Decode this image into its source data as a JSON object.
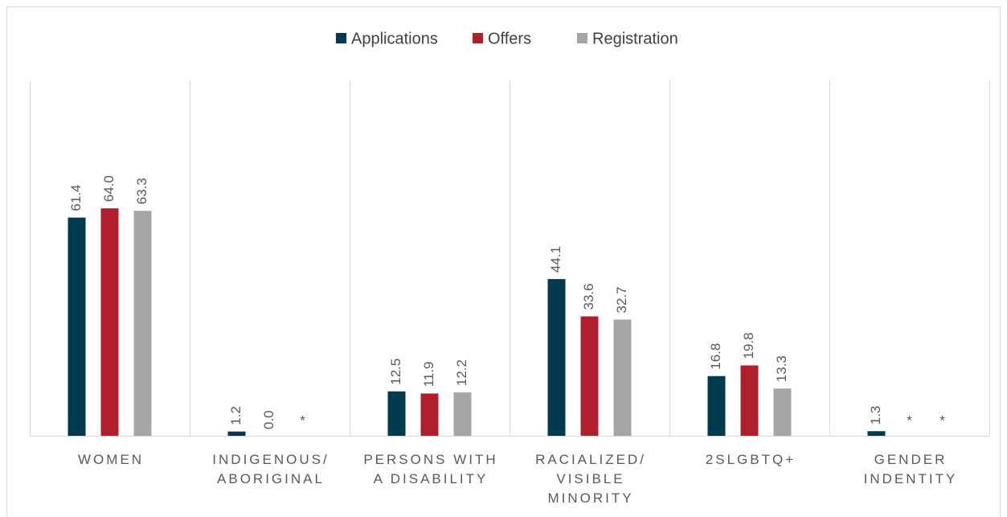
{
  "chart_data": {
    "type": "bar",
    "categories": [
      "WOMEN",
      "INDIGENOUS/\nABORIGINAL",
      "PERSONS WITH\nA DISABILITY",
      "RACIALIZED/\nVISIBLE\nMINORITY",
      "2SLGBTQ+",
      "GENDER\nINDENTITY"
    ],
    "series": [
      {
        "name": "Applications",
        "color": "#003a4f",
        "values": [
          61.4,
          1.2,
          12.5,
          44.1,
          16.8,
          1.3
        ],
        "value_labels": [
          "61.4",
          "1.2",
          "12.5",
          "44.1",
          "16.8",
          "1.3"
        ]
      },
      {
        "name": "Offers",
        "color": "#b01f2e",
        "values": [
          64.0,
          0.0,
          11.9,
          33.6,
          19.8,
          null
        ],
        "value_labels": [
          "64.0",
          "0.0",
          "11.9",
          "33.6",
          "19.8",
          "*"
        ]
      },
      {
        "name": "Registration",
        "color": "#a6a6a6",
        "values": [
          63.3,
          null,
          12.2,
          32.7,
          13.3,
          null
        ],
        "value_labels": [
          "63.3",
          "*",
          "12.2",
          "32.7",
          "13.3",
          "*"
        ]
      }
    ],
    "ylim": [
      0,
      100
    ],
    "legend": "top"
  }
}
